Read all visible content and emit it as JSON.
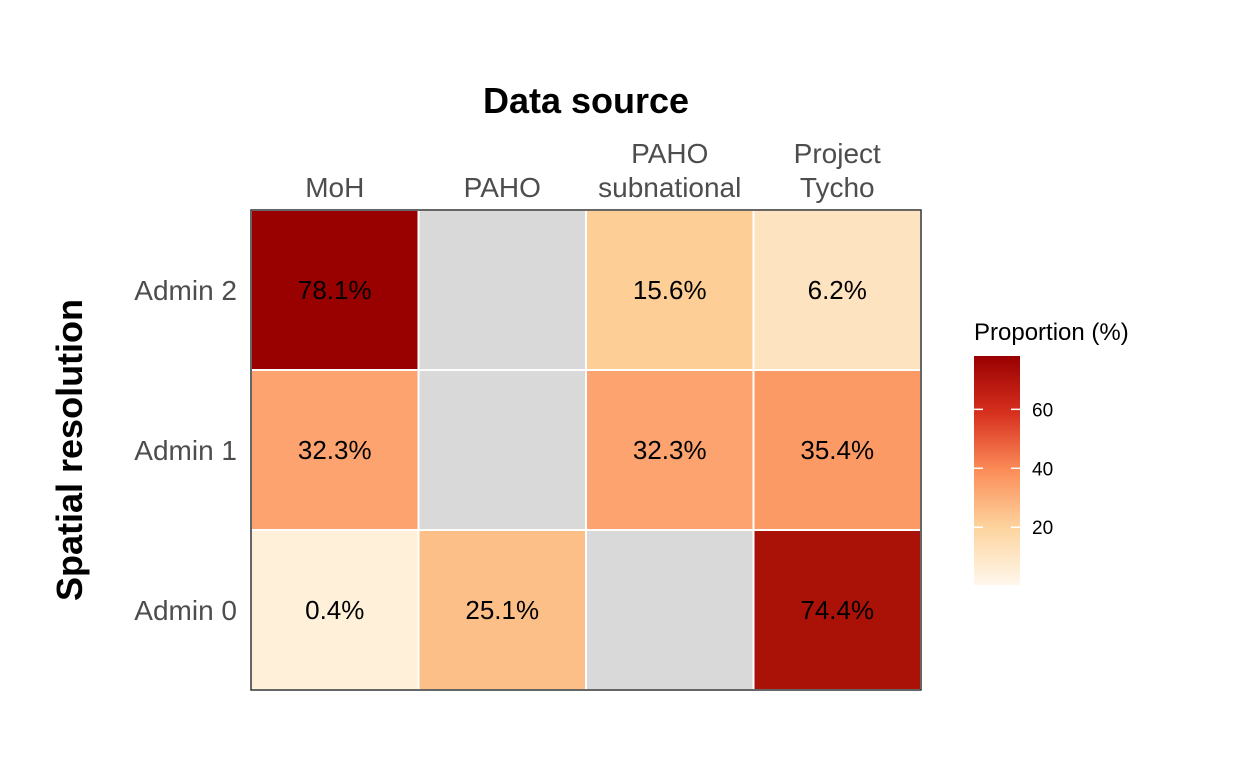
{
  "chart_data": {
    "type": "heatmap",
    "title": "",
    "xlabel": "Data source",
    "ylabel": "Spatial resolution",
    "x_position": "top",
    "x": [
      "MoH",
      "PAHO",
      "PAHO subnational",
      "Project Tycho"
    ],
    "x_tick_lines": [
      [
        "MoH"
      ],
      [
        "PAHO"
      ],
      [
        "PAHO",
        "subnational"
      ],
      [
        "Project",
        "Tycho"
      ]
    ],
    "y": [
      "Admin 2",
      "Admin 1",
      "Admin 0"
    ],
    "values": [
      [
        78.1,
        null,
        15.6,
        6.2
      ],
      [
        32.3,
        null,
        32.3,
        35.4
      ],
      [
        0.4,
        25.1,
        null,
        74.4
      ]
    ],
    "cell_labels": [
      [
        "78.1%",
        "",
        "15.6%",
        "6.2%"
      ],
      [
        "32.3%",
        "",
        "32.3%",
        "35.4%"
      ],
      [
        "0.4%",
        "25.1%",
        "",
        "74.4%"
      ]
    ],
    "missing_color": "#d9d9d9",
    "colors": {
      "Admin 2": [
        "#990000",
        "#d9d9d9",
        "#fdcf97",
        "#fee3c0"
      ],
      "Admin 1": [
        "#fda36f",
        "#d9d9d9",
        "#fda36f",
        "#fc9a66"
      ],
      "Admin 0": [
        "#fff0da",
        "#fcbf88",
        "#d9d9d9",
        "#aa1208"
      ]
    },
    "legend": {
      "title": "Proportion (%)",
      "position": "right",
      "ticks": [
        20,
        40,
        60
      ],
      "tick_labels": [
        "20",
        "40",
        "60"
      ],
      "range": [
        0.4,
        78.1
      ],
      "color_stops": [
        "#fff7ec",
        "#fdd49e",
        "#fc8d59",
        "#d7301f",
        "#990000"
      ]
    }
  }
}
